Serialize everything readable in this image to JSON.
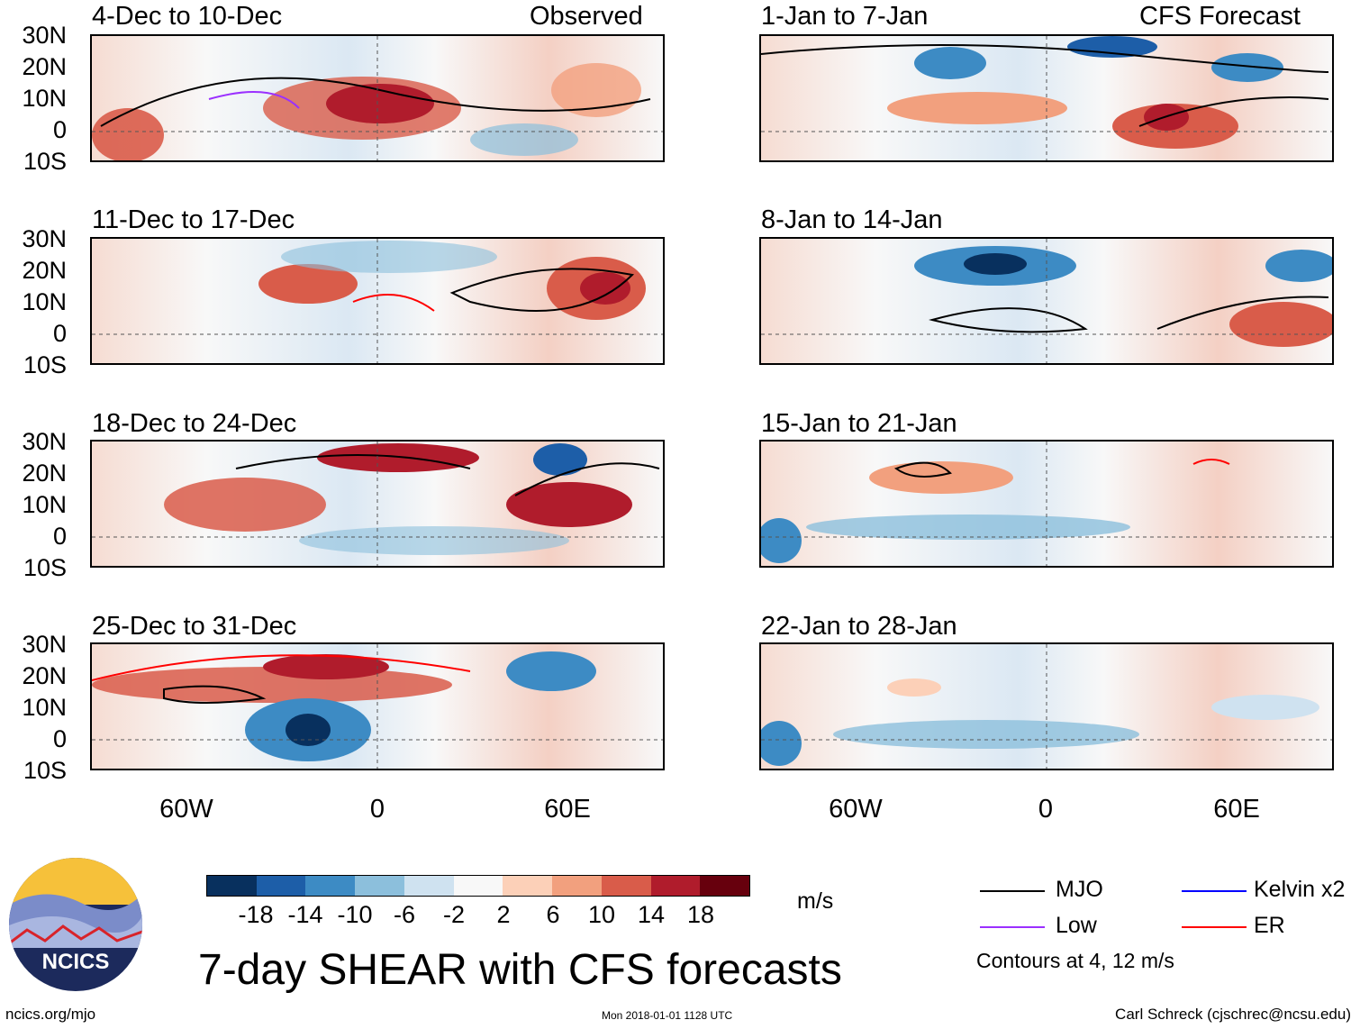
{
  "header": {
    "left": "Observed",
    "right": "CFS Forecast"
  },
  "panels": {
    "left": [
      "4-Dec to 10-Dec",
      "11-Dec to 17-Dec",
      "18-Dec to 24-Dec",
      "25-Dec to 31-Dec"
    ],
    "right": [
      "1-Jan to 7-Jan",
      "8-Jan to 14-Jan",
      "15-Jan to 21-Jan",
      "22-Jan to 28-Jan"
    ]
  },
  "yaxis": [
    "30N",
    "20N",
    "10N",
    "0",
    "10S"
  ],
  "xaxis": [
    "60W",
    "0",
    "60E"
  ],
  "colorbar": {
    "colors": [
      "#08305e",
      "#1d5ea8",
      "#3d8bc4",
      "#8cbfdc",
      "#cfe2f0",
      "#f8f8f8",
      "#fcd0b8",
      "#f2a07e",
      "#d95c4a",
      "#b01c2c",
      "#67000d"
    ],
    "labels": [
      "-18",
      "-14",
      "-10",
      "-6",
      "-2",
      "2",
      "6",
      "10",
      "14",
      "18"
    ],
    "units": "m/s"
  },
  "legend": {
    "items": [
      {
        "label": "MJO",
        "color": "#000000"
      },
      {
        "label": "Kelvin x2",
        "color": "#0000ff"
      },
      {
        "label": "Low",
        "color": "#9b30ff"
      },
      {
        "label": "ER",
        "color": "#ff0000"
      }
    ],
    "note": "Contours at 4, 12 m/s"
  },
  "title": "7-day SHEAR with CFS forecasts",
  "logo": "NCICS",
  "footer": {
    "url": "ncics.org/mjo",
    "timestamp": "Mon 2018-01-01 1128 UTC",
    "author": "Carl Schreck (cjschrec@ncsu.edu)"
  }
}
